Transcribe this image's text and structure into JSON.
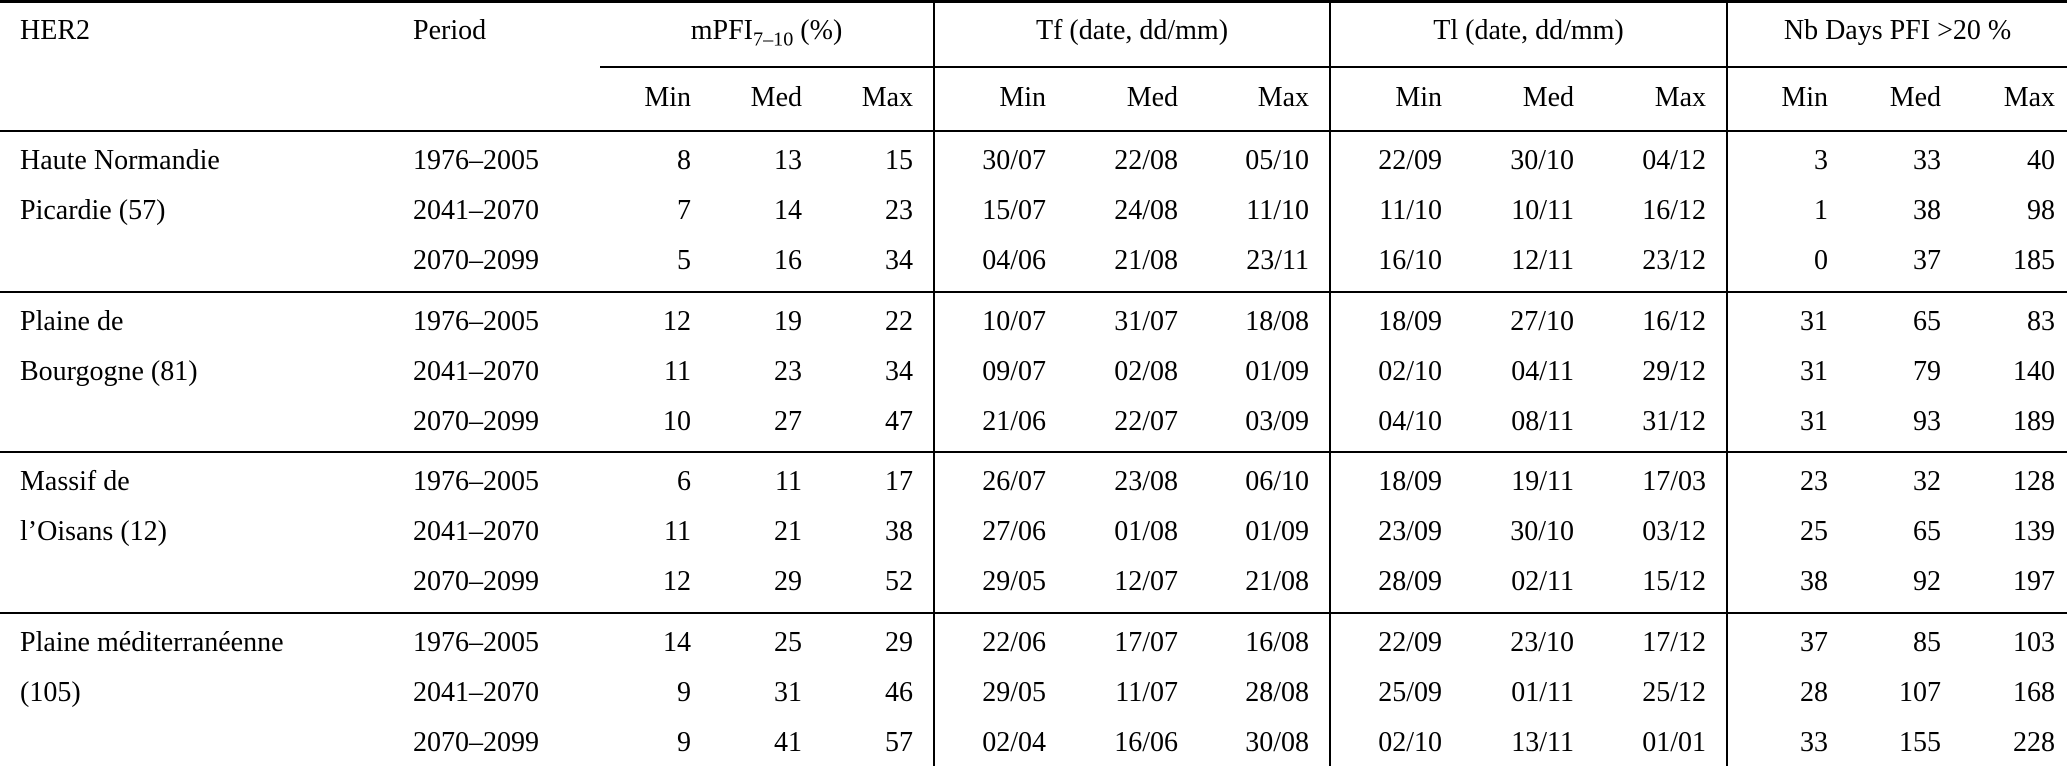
{
  "colors": {
    "text": "#000000",
    "background": "#ffffff",
    "rule": "#000000"
  },
  "header": {
    "region_label": "HER2",
    "period_label": "Period",
    "groups": [
      {
        "name": "mPFI",
        "subscript": "7–10",
        "suffix": " (%)"
      },
      {
        "name": "Tf (date, dd/mm)",
        "subscript": "",
        "suffix": ""
      },
      {
        "name": "Tl (date, dd/mm)",
        "subscript": "",
        "suffix": ""
      },
      {
        "name": "Nb Days PFI >20 %",
        "subscript": "",
        "suffix": ""
      }
    ],
    "stat_labels": [
      "Min",
      "Med",
      "Max"
    ]
  },
  "body": {
    "groups": [
      {
        "region_lines": [
          "Haute Normandie",
          "Picardie (57)"
        ],
        "rows": [
          {
            "period": "1976–2005",
            "mpfi": [
              "8",
              "13",
              "15"
            ],
            "tf": [
              "30/07",
              "22/08",
              "05/10"
            ],
            "tl": [
              "22/09",
              "30/10",
              "04/12"
            ],
            "nbdays": [
              "3",
              "33",
              "40"
            ]
          },
          {
            "period": "2041–2070",
            "mpfi": [
              "7",
              "14",
              "23"
            ],
            "tf": [
              "15/07",
              "24/08",
              "11/10"
            ],
            "tl": [
              "11/10",
              "10/11",
              "16/12"
            ],
            "nbdays": [
              "1",
              "38",
              "98"
            ]
          },
          {
            "period": "2070–2099",
            "mpfi": [
              "5",
              "16",
              "34"
            ],
            "tf": [
              "04/06",
              "21/08",
              "23/11"
            ],
            "tl": [
              "16/10",
              "12/11",
              "23/12"
            ],
            "nbdays": [
              "0",
              "37",
              "185"
            ]
          }
        ]
      },
      {
        "region_lines": [
          "Plaine de",
          "Bourgogne (81)"
        ],
        "rows": [
          {
            "period": "1976–2005",
            "mpfi": [
              "12",
              "19",
              "22"
            ],
            "tf": [
              "10/07",
              "31/07",
              "18/08"
            ],
            "tl": [
              "18/09",
              "27/10",
              "16/12"
            ],
            "nbdays": [
              "31",
              "65",
              "83"
            ]
          },
          {
            "period": "2041–2070",
            "mpfi": [
              "11",
              "23",
              "34"
            ],
            "tf": [
              "09/07",
              "02/08",
              "01/09"
            ],
            "tl": [
              "02/10",
              "04/11",
              "29/12"
            ],
            "nbdays": [
              "31",
              "79",
              "140"
            ]
          },
          {
            "period": "2070–2099",
            "mpfi": [
              "10",
              "27",
              "47"
            ],
            "tf": [
              "21/06",
              "22/07",
              "03/09"
            ],
            "tl": [
              "04/10",
              "08/11",
              "31/12"
            ],
            "nbdays": [
              "31",
              "93",
              "189"
            ]
          }
        ]
      },
      {
        "region_lines": [
          "Massif de",
          "l’Oisans (12)"
        ],
        "rows": [
          {
            "period": "1976–2005",
            "mpfi": [
              "6",
              "11",
              "17"
            ],
            "tf": [
              "26/07",
              "23/08",
              "06/10"
            ],
            "tl": [
              "18/09",
              "19/11",
              "17/03"
            ],
            "nbdays": [
              "23",
              "32",
              "128"
            ]
          },
          {
            "period": "2041–2070",
            "mpfi": [
              "11",
              "21",
              "38"
            ],
            "tf": [
              "27/06",
              "01/08",
              "01/09"
            ],
            "tl": [
              "23/09",
              "30/10",
              "03/12"
            ],
            "nbdays": [
              "25",
              "65",
              "139"
            ]
          },
          {
            "period": "2070–2099",
            "mpfi": [
              "12",
              "29",
              "52"
            ],
            "tf": [
              "29/05",
              "12/07",
              "21/08"
            ],
            "tl": [
              "28/09",
              "02/11",
              "15/12"
            ],
            "nbdays": [
              "38",
              "92",
              "197"
            ]
          }
        ]
      },
      {
        "region_lines": [
          "Plaine méditerranéenne",
          "(105)"
        ],
        "rows": [
          {
            "period": "1976–2005",
            "mpfi": [
              "14",
              "25",
              "29"
            ],
            "tf": [
              "22/06",
              "17/07",
              "16/08"
            ],
            "tl": [
              "22/09",
              "23/10",
              "17/12"
            ],
            "nbdays": [
              "37",
              "85",
              "103"
            ]
          },
          {
            "period": "2041–2070",
            "mpfi": [
              "9",
              "31",
              "46"
            ],
            "tf": [
              "29/05",
              "11/07",
              "28/08"
            ],
            "tl": [
              "25/09",
              "01/11",
              "25/12"
            ],
            "nbdays": [
              "28",
              "107",
              "168"
            ]
          },
          {
            "period": "2070–2099",
            "mpfi": [
              "9",
              "41",
              "57"
            ],
            "tf": [
              "02/04",
              "16/06",
              "30/08"
            ],
            "tl": [
              "02/10",
              "13/11",
              "01/01"
            ],
            "nbdays": [
              "33",
              "155",
              "228"
            ]
          }
        ]
      }
    ]
  }
}
